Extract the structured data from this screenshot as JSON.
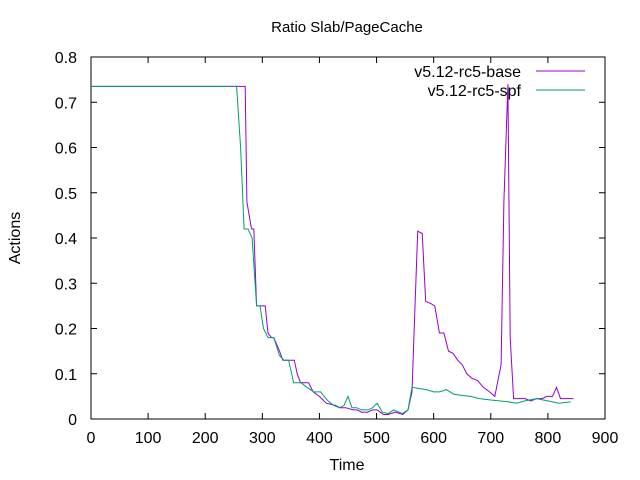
{
  "chart_data": {
    "type": "line",
    "title": "Ratio Slab/PageCache",
    "xlabel": "Time",
    "ylabel": "Actions",
    "xlim": [
      0,
      900
    ],
    "ylim": [
      0,
      0.8
    ],
    "xticks": [
      0,
      100,
      200,
      300,
      400,
      500,
      600,
      700,
      800,
      900
    ],
    "yticks": [
      0,
      0.1,
      0.2,
      0.3,
      0.4,
      0.5,
      0.6,
      0.7,
      0.8
    ],
    "xtick_labels": [
      "0",
      "100",
      "200",
      "300",
      "400",
      "500",
      "600",
      "700",
      "800",
      "900"
    ],
    "ytick_labels": [
      "0",
      "0.1",
      "0.2",
      "0.3",
      "0.4",
      "0.5",
      "0.6",
      "0.7",
      "0.8"
    ],
    "grid": false,
    "legend_position": "top-right",
    "series": [
      {
        "name": "v5.12-rc5-base",
        "color": "#9400d3",
        "x": [
          0,
          270,
          273,
          281,
          285,
          290,
          295,
          300,
          305,
          310,
          316,
          320,
          330,
          336,
          342,
          350,
          356,
          361,
          367,
          375,
          381,
          389,
          400,
          412,
          428,
          436,
          446,
          459,
          466,
          474,
          484,
          493,
          501,
          512,
          520,
          533,
          546,
          555,
          562,
          566,
          572,
          580,
          586,
          595,
          602,
          610,
          618,
          626,
          634,
          642,
          650,
          658,
          667,
          677,
          687,
          698,
          707,
          718,
          723,
          730,
          734,
          740,
          746,
          752,
          760,
          770,
          780,
          790,
          798,
          808,
          815,
          822,
          830,
          845
        ],
        "y": [
          0.735,
          0.735,
          0.48,
          0.42,
          0.42,
          0.25,
          0.25,
          0.25,
          0.25,
          0.19,
          0.18,
          0.18,
          0.15,
          0.13,
          0.13,
          0.13,
          0.13,
          0.1,
          0.08,
          0.08,
          0.08,
          0.06,
          0.05,
          0.035,
          0.03,
          0.025,
          0.025,
          0.02,
          0.02,
          0.015,
          0.015,
          0.02,
          0.02,
          0.01,
          0.01,
          0.015,
          0.01,
          0.02,
          0.06,
          0.2,
          0.415,
          0.41,
          0.26,
          0.255,
          0.25,
          0.19,
          0.19,
          0.15,
          0.145,
          0.13,
          0.12,
          0.1,
          0.09,
          0.085,
          0.07,
          0.06,
          0.05,
          0.12,
          0.48,
          0.74,
          0.18,
          0.045,
          0.045,
          0.045,
          0.045,
          0.04,
          0.045,
          0.045,
          0.05,
          0.05,
          0.07,
          0.045,
          0.045,
          0.045
        ]
      },
      {
        "name": "v5.12-rc5-spf",
        "color": "#009e73",
        "x": [
          0,
          222,
          255,
          262,
          268,
          275,
          282,
          290,
          296,
          302,
          310,
          320,
          330,
          338,
          346,
          355,
          360,
          368,
          378,
          390,
          402,
          415,
          425,
          435,
          443,
          450,
          457,
          465,
          474,
          485,
          493,
          501,
          510,
          520,
          530,
          545,
          555,
          562,
          572,
          587,
          600,
          610,
          622,
          635,
          650,
          665,
          680,
          700,
          715,
          730,
          745,
          760,
          780,
          800,
          820,
          840
        ],
        "y": [
          0.735,
          0.735,
          0.735,
          0.6,
          0.42,
          0.42,
          0.4,
          0.25,
          0.25,
          0.2,
          0.18,
          0.18,
          0.14,
          0.13,
          0.13,
          0.08,
          0.08,
          0.08,
          0.07,
          0.06,
          0.06,
          0.04,
          0.03,
          0.025,
          0.03,
          0.05,
          0.025,
          0.025,
          0.02,
          0.02,
          0.025,
          0.035,
          0.015,
          0.012,
          0.02,
          0.012,
          0.02,
          0.07,
          0.068,
          0.065,
          0.06,
          0.06,
          0.065,
          0.055,
          0.052,
          0.05,
          0.045,
          0.042,
          0.04,
          0.038,
          0.035,
          0.04,
          0.045,
          0.04,
          0.035,
          0.038
        ]
      }
    ]
  }
}
